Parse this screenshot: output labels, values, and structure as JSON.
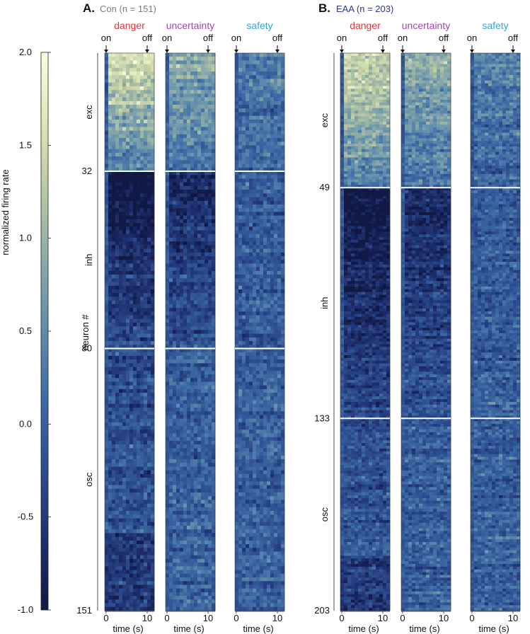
{
  "colors": {
    "danger": "#e4343c",
    "uncertainty": "#a444b4",
    "safety": "#2aa6d8",
    "con": "#7d7d7d",
    "eaa": "#2f3590",
    "colormap": [
      "#101844",
      "#1e2f6e",
      "#2c4c8e",
      "#3d6aa4",
      "#5f8cac",
      "#8aaaa8",
      "#b8c8a4",
      "#dfe6b6",
      "#fbfde4"
    ]
  },
  "chart_data": {
    "type": "heatmap",
    "colorbar": {
      "label": "normalized firing rate",
      "range": [
        -1.0,
        2.0
      ],
      "ticks": [
        "2.0",
        "1.5",
        "1.0",
        "0.5",
        "0.0",
        "-0.5",
        "-1.0"
      ]
    },
    "ylabel": "neuron #",
    "xlabel": "time (s)",
    "xticks": [
      "0",
      "10"
    ],
    "event_labels": {
      "on": "on",
      "off": "off"
    },
    "conditions": [
      "danger",
      "uncertainty",
      "safety"
    ],
    "groups": [
      {
        "letter": "A.",
        "name": "Con",
        "n_label": "(n = 151)",
        "n": 151,
        "boundaries": [
          "32",
          "80",
          "151"
        ],
        "boundary_values": [
          32,
          80,
          151
        ],
        "categories": [
          "exc",
          "inh",
          "osc"
        ]
      },
      {
        "letter": "B.",
        "name": "EAA",
        "n_label": "(n = 203)",
        "n": 203,
        "boundaries": [
          "49",
          "133",
          "203"
        ],
        "boundary_values": [
          49,
          133,
          203
        ],
        "categories": [
          "exc",
          "inh",
          "osc"
        ]
      }
    ],
    "time_bins": 14,
    "profiles": {
      "exc": {
        "danger": 1.15,
        "uncertainty": 0.7,
        "safety": 0.25
      },
      "inh": {
        "danger": -0.85,
        "uncertainty": -0.55,
        "safety": -0.05
      },
      "osc": {
        "danger": -0.2,
        "uncertainty": 0.0,
        "safety": 0.0
      }
    }
  }
}
